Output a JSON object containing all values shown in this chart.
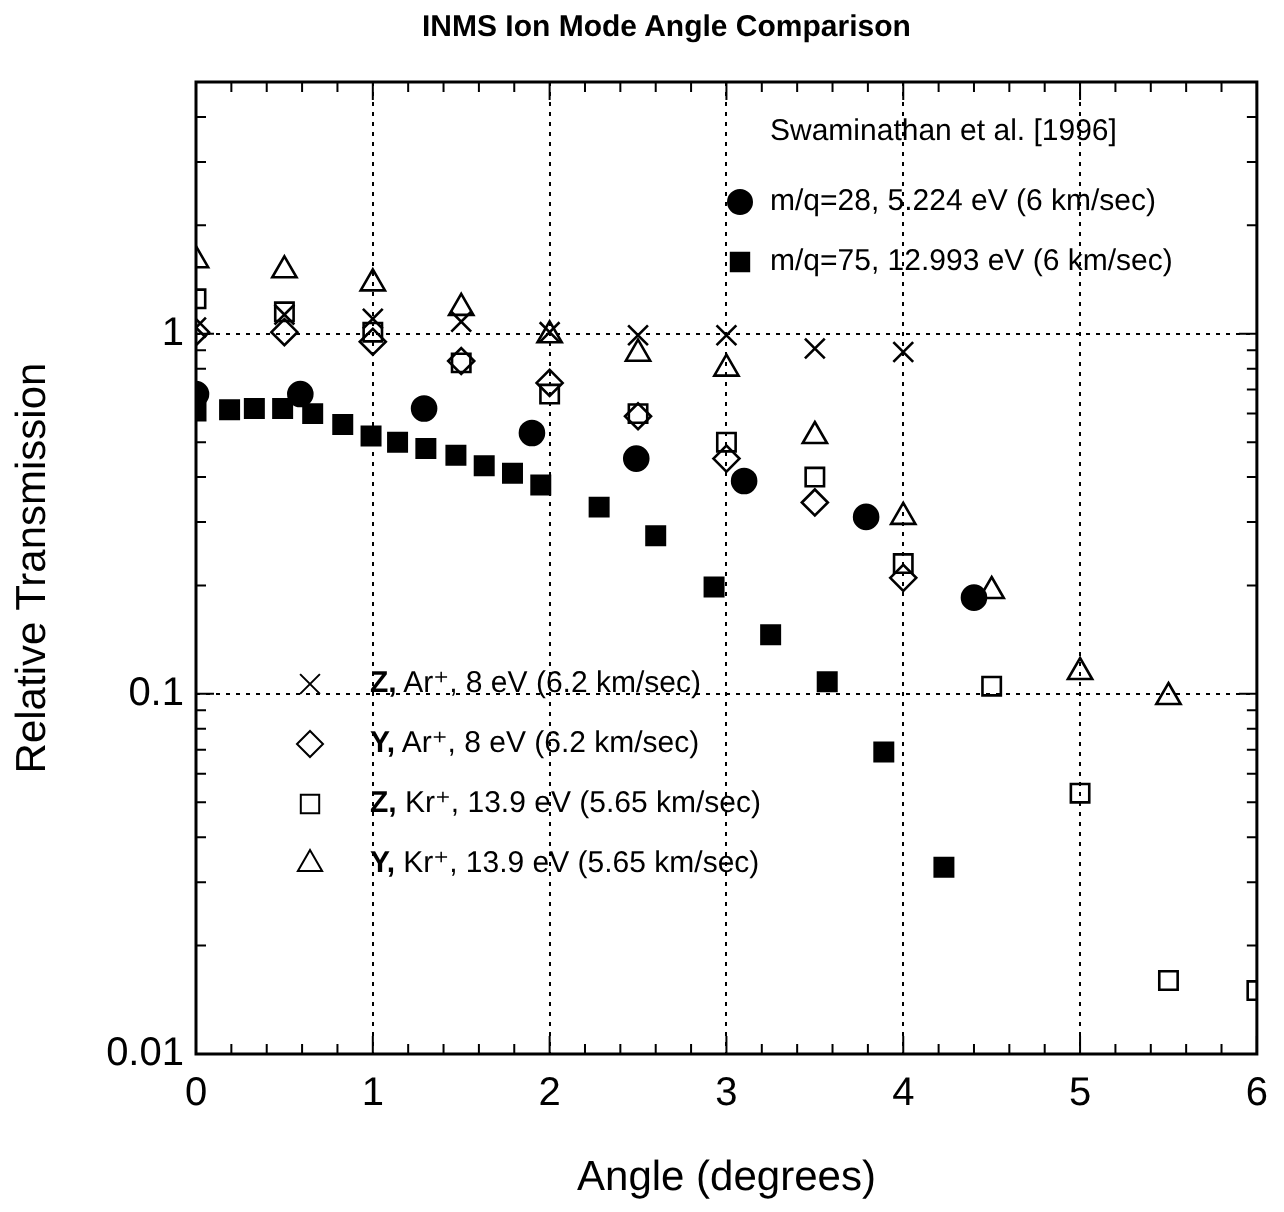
{
  "chart_data": {
    "type": "scatter",
    "title": "INMS Ion Mode Angle Comparison",
    "xlabel": "Angle (degrees)",
    "ylabel": "Relative Transmission",
    "legend_title": "Swaminathan et al. [1996]",
    "legend": "top right",
    "log": "y",
    "grid": true,
    "xlim": [
      0,
      6
    ],
    "ylim": [
      0.01,
      5
    ],
    "xticks": [
      0,
      {
        "value": 0.2,
        "label": null
      },
      {
        "value": 0.4,
        "label": null
      },
      {
        "value": 0.6,
        "label": null
      },
      {
        "value": 0.8,
        "label": null
      },
      1,
      {
        "value": 1.2,
        "label": null
      },
      {
        "value": 1.4,
        "label": null
      },
      {
        "value": 1.6,
        "label": null
      },
      {
        "value": 1.8,
        "label": null
      },
      2,
      {
        "value": 2.2,
        "label": null
      },
      {
        "value": 2.4,
        "label": null
      },
      {
        "value": 2.6,
        "label": null
      },
      {
        "value": 2.8,
        "label": null
      },
      3,
      {
        "value": 3.2,
        "label": null
      },
      {
        "value": 3.4,
        "label": null
      },
      {
        "value": 3.6,
        "label": null
      },
      {
        "value": 3.8,
        "label": null
      },
      4,
      {
        "value": 4.2,
        "label": null
      },
      {
        "value": 4.4,
        "label": null
      },
      {
        "value": 4.6,
        "label": null
      },
      {
        "value": 4.8,
        "label": null
      },
      5,
      {
        "value": 5.2,
        "label": null
      },
      {
        "value": 5.4,
        "label": null
      },
      {
        "value": 5.6,
        "label": null
      },
      {
        "value": 5.8,
        "label": null
      },
      6
    ],
    "yticks": [
      0.01,
      {
        "value": 0.02,
        "label": null
      },
      {
        "value": 0.03,
        "label": null
      },
      {
        "value": 0.04,
        "label": null
      },
      {
        "value": 0.05,
        "label": null
      },
      {
        "value": 0.06,
        "label": null
      },
      {
        "value": 0.07,
        "label": null
      },
      {
        "value": 0.08,
        "label": null
      },
      {
        "value": 0.09,
        "label": null
      },
      0.1,
      {
        "value": 0.2,
        "label": null
      },
      {
        "value": 0.3,
        "label": null
      },
      {
        "value": 0.4,
        "label": null
      },
      {
        "value": 0.5,
        "label": null
      },
      {
        "value": 0.6,
        "label": null
      },
      {
        "value": 0.7,
        "label": null
      },
      {
        "value": 0.8,
        "label": null
      },
      {
        "value": 0.9,
        "label": null
      },
      1,
      {
        "value": 2,
        "label": null
      },
      {
        "value": 3,
        "label": null
      },
      {
        "value": 4,
        "label": null
      },
      {
        "value": 5,
        "label": null
      }
    ],
    "series": [
      {
        "name": "m/q=28, 5.224 eV (6 km/sec)",
        "color": "#000000",
        "marker": "circle",
        "x": [
          0,
          0.59,
          1.29,
          1.9,
          2.49,
          3.1,
          3.79,
          4.4
        ],
        "values": [
          0.68,
          0.68,
          0.62,
          0.53,
          0.45,
          0.39,
          0.31,
          0.185
        ]
      },
      {
        "name": "m/q=75, 12.993 eV (6 km/sec)",
        "color": "#000000",
        "marker": "square",
        "x": [
          0,
          0.19,
          0.33,
          0.49,
          0.66,
          0.83,
          0.99,
          1.14,
          1.3,
          1.47,
          1.63,
          1.79,
          1.95,
          2.28,
          2.6,
          2.93,
          3.25,
          3.57,
          3.89,
          4.23
        ],
        "values": [
          0.61,
          0.615,
          0.62,
          0.62,
          0.6,
          0.56,
          0.52,
          0.5,
          0.48,
          0.46,
          0.43,
          0.41,
          0.38,
          0.33,
          0.275,
          0.198,
          0.146,
          0.108,
          0.069,
          0.033
        ]
      },
      {
        "name": "Z, Ar⁺, 8 eV (6.2 km/sec)",
        "color": "#000000",
        "marker": "cross",
        "x": [
          0,
          0.5,
          1,
          1.5,
          2,
          2.5,
          3,
          3.5,
          4
        ],
        "values": [
          1.04,
          1.13,
          1.1,
          1.08,
          1.01,
          0.99,
          0.99,
          0.91,
          0.89
        ]
      },
      {
        "name": "Y, Ar⁺, 8 eV (6.2 km/sec)",
        "color": "#000000",
        "marker": "diamond",
        "x": [
          0,
          0.5,
          1,
          1.5,
          2,
          2.5,
          3,
          3.5,
          4
        ],
        "values": [
          1.01,
          1.01,
          0.95,
          0.84,
          0.73,
          0.59,
          0.45,
          0.34,
          0.21
        ]
      },
      {
        "name": "Z, Kr⁺, 13.9 eV (5.65 km/sec)",
        "color": "#000000",
        "marker": "square",
        "x": [
          0,
          0.5,
          1,
          1.5,
          2,
          2.5,
          3,
          3.5,
          4,
          4.5,
          5,
          5.5,
          6
        ],
        "values": [
          1.25,
          1.15,
          1.01,
          0.83,
          0.68,
          0.6,
          0.5,
          0.4,
          0.23,
          0.105,
          0.053,
          0.016,
          0.015
        ]
      },
      {
        "name": "Y, Kr⁺, 13.9 eV (5.65 km/sec)",
        "color": "#000000",
        "marker": "triangle",
        "x": [
          0,
          0.5,
          1,
          1.5,
          2,
          2.5,
          3,
          3.5,
          4,
          4.5,
          5,
          5.5
        ],
        "values": [
          1.6,
          1.5,
          1.38,
          1.18,
          0.99,
          0.88,
          0.8,
          0.52,
          0.31,
          0.193,
          0.115,
          0.098
        ]
      }
    ]
  }
}
